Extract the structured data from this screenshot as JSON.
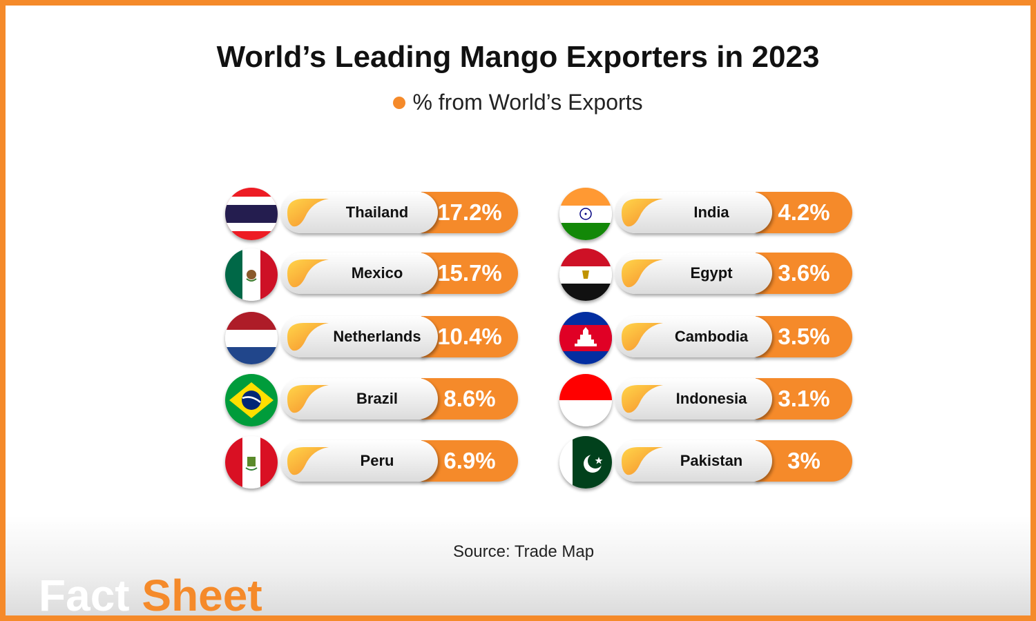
{
  "title": "World’s Leading Mango Exporters in 2023",
  "legend_label": "% from World’s Exports",
  "source": "Source: Trade Map",
  "brand": {
    "part1": "Fact",
    "part2": "Sheet"
  },
  "colors": {
    "accent": "#f58a2a",
    "pill_light": "#ffffff",
    "pill_dark": "#dcdcdc"
  },
  "chart_data": {
    "type": "table",
    "title": "World’s Leading Mango Exporters in 2023",
    "legend": [
      "% from World’s Exports"
    ],
    "categories": [
      "Thailand",
      "Mexico",
      "Netherlands",
      "Brazil",
      "Peru",
      "India",
      "Egypt",
      "Cambodia",
      "Indonesia",
      "Pakistan"
    ],
    "values": [
      17.2,
      15.7,
      10.4,
      8.6,
      6.9,
      4.2,
      3.6,
      3.5,
      3.1,
      3
    ],
    "value_labels": [
      "17.2%",
      "15.7%",
      "10.4%",
      "8.6%",
      "6.9%",
      "4.2%",
      "3.6%",
      "3.5%",
      "3.1%",
      "3%"
    ]
  },
  "rows": [
    {
      "country": "Thailand",
      "value": "17.2%",
      "flag": "thailand-flag-icon"
    },
    {
      "country": "Mexico",
      "value": "15.7%",
      "flag": "mexico-flag-icon"
    },
    {
      "country": "Netherlands",
      "value": "10.4%",
      "flag": "netherlands-flag-icon"
    },
    {
      "country": "Brazil",
      "value": "8.6%",
      "flag": "brazil-flag-icon"
    },
    {
      "country": "Peru",
      "value": "6.9%",
      "flag": "peru-flag-icon"
    },
    {
      "country": "India",
      "value": "4.2%",
      "flag": "india-flag-icon"
    },
    {
      "country": "Egypt",
      "value": "3.6%",
      "flag": "egypt-flag-icon"
    },
    {
      "country": "Cambodia",
      "value": "3.5%",
      "flag": "cambodia-flag-icon"
    },
    {
      "country": "Indonesia",
      "value": "3.1%",
      "flag": "indonesia-flag-icon"
    },
    {
      "country": "Pakistan",
      "value": "3%",
      "flag": "pakistan-flag-icon"
    }
  ]
}
